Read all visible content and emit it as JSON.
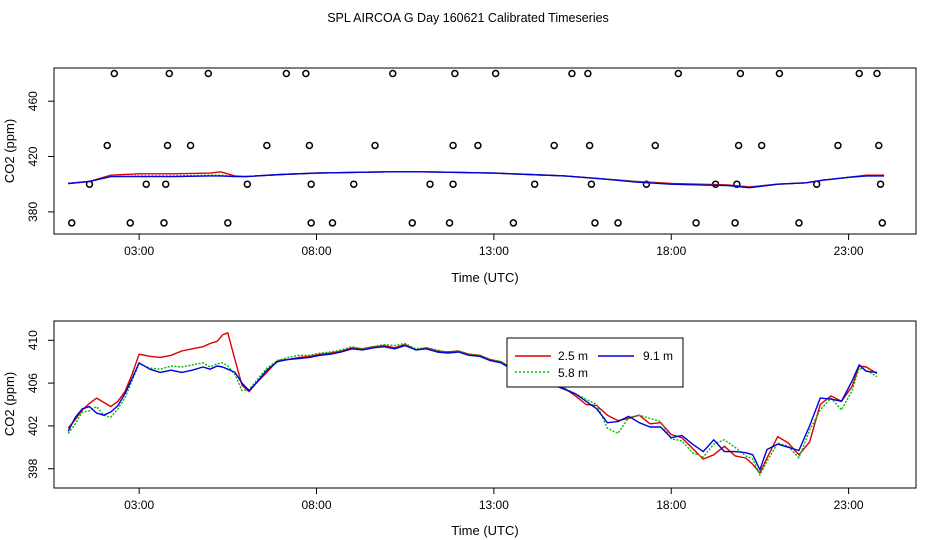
{
  "title": "SPL AIRCOA G  Day 160621  Calibrated Timeseries",
  "colors": {
    "2.5 m": "#dd0000",
    "5.8 m": "#00bb00",
    "9.1 m": "#0000dd",
    "axis": "#000000",
    "flags": "#000000"
  },
  "chart_data": [
    {
      "type": "line",
      "name": "upper-panel",
      "xlabel": "Time (UTC)",
      "ylabel": "CO2 (ppm)",
      "xlim": [
        0.6,
        24.9
      ],
      "ylim": [
        364,
        484
      ],
      "xticks": [
        3,
        8,
        13,
        18,
        23
      ],
      "xtick_labels": [
        "03:00",
        "08:00",
        "13:00",
        "18:00",
        "23:00"
      ],
      "yticks": [
        380,
        420,
        460
      ],
      "ytick_labels": [
        "380",
        "420",
        "460"
      ],
      "series": [
        {
          "name": "2.5 m",
          "x": [
            1.0,
            1.6,
            2.2,
            3.0,
            4.0,
            5.0,
            5.3,
            5.7,
            6.0,
            7.0,
            8.0,
            9.0,
            10.0,
            11.0,
            12.0,
            13.0,
            14.0,
            15.0,
            16.0,
            17.0,
            18.0,
            18.8,
            19.6,
            20.2,
            21.0,
            21.8,
            22.3,
            23.0,
            23.5,
            24.0
          ],
          "values": [
            400.5,
            402,
            406.5,
            407.5,
            407.5,
            408,
            409,
            406,
            405.5,
            407,
            408,
            408.5,
            409,
            409,
            408.5,
            408,
            407,
            406,
            404,
            402,
            400.5,
            400,
            399.5,
            398,
            400,
            401,
            403,
            405,
            406.5,
            406.5
          ]
        },
        {
          "name": "5.8 m",
          "x": [
            1.0,
            1.6,
            2.2,
            3.0,
            4.0,
            5.0,
            5.3,
            5.7,
            6.0,
            7.0,
            8.0,
            9.0,
            10.0,
            11.0,
            12.0,
            13.0,
            14.0,
            15.0,
            16.0,
            17.0,
            18.0,
            18.8,
            19.6,
            20.2,
            21.0,
            21.8,
            22.3,
            23.0,
            23.5,
            24.0
          ],
          "values": [
            400.5,
            402,
            405.5,
            406,
            406,
            406.5,
            406.5,
            405.5,
            405.5,
            407,
            408,
            408.5,
            409,
            409,
            408.5,
            408,
            407,
            406,
            404,
            402,
            400,
            399.5,
            399,
            397.5,
            400,
            401,
            403,
            405,
            406,
            406
          ]
        },
        {
          "name": "9.1 m",
          "x": [
            1.0,
            1.6,
            2.2,
            3.0,
            4.0,
            5.0,
            5.3,
            5.7,
            6.0,
            7.0,
            8.0,
            9.0,
            10.0,
            11.0,
            12.0,
            13.0,
            14.0,
            15.0,
            16.0,
            17.0,
            18.0,
            18.8,
            19.6,
            20.2,
            21.0,
            21.8,
            22.3,
            23.0,
            23.5,
            24.0
          ],
          "values": [
            400.5,
            402,
            405.5,
            405.5,
            405.5,
            406,
            406,
            405.5,
            405.5,
            407,
            408,
            408.5,
            409,
            409,
            408.5,
            408,
            407,
            406,
            404,
            401.5,
            400,
            399.5,
            399,
            397.5,
            400,
            401,
            403,
            405,
            406,
            406
          ]
        }
      ],
      "markers": {
        "name": "valve flags",
        "symbol": "open-circle",
        "x": [
          1.1,
          1.6,
          2.1,
          2.3,
          2.75,
          3.2,
          3.7,
          3.75,
          3.8,
          3.85,
          4.45,
          4.95,
          5.5,
          6.05,
          6.6,
          7.15,
          7.7,
          7.8,
          7.85,
          7.85,
          8.45,
          9.05,
          9.65,
          10.15,
          10.7,
          11.2,
          11.75,
          11.85,
          11.85,
          11.9,
          12.55,
          13.05,
          13.55,
          14.15,
          14.7,
          15.2,
          15.65,
          15.7,
          15.75,
          15.85,
          16.5,
          17.3,
          17.55,
          18.2,
          18.7,
          19.25,
          19.8,
          19.85,
          19.9,
          19.95,
          20.55,
          21.05,
          21.6,
          22.1,
          22.7,
          23.3,
          23.8,
          23.85,
          23.9,
          23.95
        ],
        "values": [
          372,
          400,
          428,
          480,
          372,
          400,
          372,
          400,
          428,
          480,
          428,
          480,
          372,
          400,
          428,
          480,
          480,
          428,
          400,
          372,
          372,
          400,
          428,
          480,
          372,
          400,
          372,
          400,
          428,
          480,
          428,
          480,
          372,
          400,
          428,
          480,
          480,
          428,
          400,
          372,
          372,
          400,
          428,
          480,
          372,
          400,
          372,
          400,
          428,
          480,
          428,
          480,
          372,
          400,
          428,
          480,
          480,
          428,
          400,
          372
        ]
      }
    },
    {
      "type": "line",
      "name": "lower-panel",
      "xlabel": "Time (UTC)",
      "ylabel": "CO2 (ppm)",
      "xlim": [
        0.6,
        24.9
      ],
      "ylim": [
        396.2,
        411.8
      ],
      "xticks": [
        3,
        8,
        13,
        18,
        23
      ],
      "xtick_labels": [
        "03:00",
        "08:00",
        "13:00",
        "18:00",
        "23:00"
      ],
      "yticks": [
        398,
        402,
        406,
        410
      ],
      "ytick_labels": [
        "398",
        "402",
        "406",
        "410"
      ],
      "legend": {
        "placement": "center-right",
        "entries": [
          "2.5 m",
          "5.8 m",
          "9.1 m"
        ]
      },
      "series": [
        {
          "name": "2.5 m",
          "x": [
            1.0,
            1.2,
            1.4,
            1.6,
            1.8,
            2.0,
            2.2,
            2.4,
            2.6,
            2.8,
            3.0,
            3.3,
            3.6,
            3.9,
            4.2,
            4.5,
            4.8,
            5.0,
            5.2,
            5.35,
            5.5,
            5.7,
            5.9,
            6.1,
            6.3,
            6.6,
            6.9,
            7.2,
            7.5,
            7.8,
            8.1,
            8.4,
            8.7,
            9.0,
            9.3,
            9.6,
            9.9,
            10.2,
            10.5,
            10.8,
            11.1,
            11.4,
            11.7,
            12.0,
            12.3,
            12.6,
            12.9,
            13.2,
            13.5,
            13.8,
            14.1,
            14.4,
            14.7,
            15.0,
            15.3,
            15.6,
            15.9,
            16.2,
            16.5,
            16.8,
            17.1,
            17.4,
            17.7,
            18.0,
            18.3,
            18.6,
            18.9,
            19.2,
            19.5,
            19.8,
            20.1,
            20.3,
            20.5,
            20.7,
            21.0,
            21.3,
            21.6,
            21.9,
            22.2,
            22.5,
            22.8,
            23.1,
            23.3,
            23.5,
            23.8
          ],
          "values": [
            401.8,
            402.6,
            403.5,
            404.1,
            404.6,
            404.2,
            403.8,
            404.3,
            405.2,
            406.8,
            408.7,
            408.5,
            408.4,
            408.6,
            409.0,
            409.2,
            409.4,
            409.7,
            409.9,
            410.5,
            410.7,
            408.2,
            405.8,
            405.2,
            406.0,
            407.0,
            408.1,
            408.2,
            408.4,
            408.5,
            408.7,
            408.8,
            409.0,
            409.3,
            409.2,
            409.4,
            409.5,
            409.3,
            409.6,
            409.1,
            409.3,
            409.0,
            408.9,
            409.0,
            408.7,
            408.6,
            408.2,
            408.0,
            407.4,
            406.9,
            406.6,
            406.0,
            405.8,
            405.5,
            404.8,
            404.0,
            403.9,
            403.0,
            402.5,
            402.7,
            403.0,
            402.2,
            402.3,
            401.2,
            400.9,
            399.9,
            398.9,
            399.3,
            400.1,
            399.2,
            399.0,
            398.4,
            397.6,
            399.0,
            401.0,
            400.4,
            399.3,
            400.5,
            404.0,
            404.8,
            404.3,
            405.7,
            407.6,
            407.5,
            406.9
          ]
        },
        {
          "name": "5.8 m",
          "x": [
            1.0,
            1.2,
            1.4,
            1.6,
            1.8,
            2.0,
            2.2,
            2.4,
            2.6,
            2.8,
            3.0,
            3.3,
            3.6,
            3.9,
            4.2,
            4.5,
            4.8,
            5.0,
            5.2,
            5.35,
            5.5,
            5.7,
            5.9,
            6.1,
            6.3,
            6.6,
            6.9,
            7.2,
            7.5,
            7.8,
            8.1,
            8.4,
            8.7,
            9.0,
            9.3,
            9.6,
            9.9,
            10.2,
            10.5,
            10.8,
            11.1,
            11.4,
            11.7,
            12.0,
            12.3,
            12.6,
            12.9,
            13.2,
            13.5,
            13.8,
            14.1,
            14.4,
            14.7,
            15.0,
            15.3,
            15.6,
            15.9,
            16.2,
            16.5,
            16.8,
            17.1,
            17.4,
            17.7,
            18.0,
            18.3,
            18.6,
            18.9,
            19.2,
            19.5,
            19.8,
            20.1,
            20.3,
            20.5,
            20.7,
            21.0,
            21.3,
            21.6,
            21.9,
            22.2,
            22.5,
            22.8,
            23.1,
            23.3,
            23.5,
            23.8
          ],
          "values": [
            401.3,
            402.2,
            403.3,
            403.4,
            403.8,
            403.0,
            402.8,
            403.6,
            404.6,
            406.2,
            407.8,
            407.4,
            407.3,
            407.6,
            407.5,
            407.7,
            407.9,
            407.5,
            407.8,
            407.9,
            407.6,
            406.8,
            405.3,
            405.4,
            406.2,
            407.4,
            408.1,
            408.4,
            408.6,
            408.6,
            408.8,
            408.9,
            409.1,
            409.4,
            409.2,
            409.4,
            409.6,
            409.5,
            409.7,
            409.2,
            409.3,
            409.1,
            408.8,
            409.0,
            408.7,
            408.6,
            408.2,
            408.0,
            407.3,
            406.8,
            406.5,
            406.0,
            405.9,
            405.5,
            405.0,
            404.5,
            404.0,
            401.8,
            401.3,
            402.8,
            403.0,
            402.7,
            402.4,
            400.8,
            400.6,
            399.5,
            399.1,
            400.3,
            400.7,
            400.0,
            399.2,
            398.9,
            397.4,
            398.7,
            400.4,
            400.1,
            399.0,
            401.6,
            403.5,
            404.6,
            403.5,
            405.3,
            407.4,
            407.2,
            406.6
          ]
        },
        {
          "name": "9.1 m",
          "x": [
            1.0,
            1.2,
            1.4,
            1.6,
            1.8,
            2.0,
            2.2,
            2.4,
            2.6,
            2.8,
            3.0,
            3.3,
            3.6,
            3.9,
            4.2,
            4.5,
            4.8,
            5.0,
            5.2,
            5.35,
            5.5,
            5.7,
            5.9,
            6.1,
            6.3,
            6.6,
            6.9,
            7.2,
            7.5,
            7.8,
            8.1,
            8.4,
            8.7,
            9.0,
            9.3,
            9.6,
            9.9,
            10.2,
            10.5,
            10.8,
            11.1,
            11.4,
            11.7,
            12.0,
            12.3,
            12.6,
            12.9,
            13.2,
            13.5,
            13.8,
            14.1,
            14.4,
            14.7,
            15.0,
            15.3,
            15.6,
            15.9,
            16.2,
            16.5,
            16.8,
            17.1,
            17.4,
            17.7,
            18.0,
            18.3,
            18.6,
            18.9,
            19.2,
            19.5,
            19.8,
            20.1,
            20.3,
            20.5,
            20.7,
            21.0,
            21.3,
            21.6,
            21.9,
            22.2,
            22.5,
            22.8,
            23.1,
            23.3,
            23.5,
            23.8
          ],
          "values": [
            401.5,
            402.8,
            403.6,
            403.8,
            403.2,
            403.0,
            403.3,
            403.9,
            405.0,
            406.4,
            407.9,
            407.3,
            407.0,
            407.2,
            407.0,
            407.2,
            407.5,
            407.3,
            407.6,
            407.5,
            407.3,
            407.0,
            406.0,
            405.3,
            406.0,
            407.2,
            408.0,
            408.2,
            408.3,
            408.4,
            408.6,
            408.7,
            408.9,
            409.2,
            409.1,
            409.3,
            409.4,
            409.2,
            409.5,
            409.1,
            409.2,
            408.9,
            408.8,
            408.9,
            408.6,
            408.5,
            408.1,
            407.9,
            407.3,
            406.8,
            406.5,
            406.0,
            405.8,
            405.4,
            405.0,
            404.3,
            403.6,
            402.3,
            402.4,
            402.9,
            402.3,
            401.9,
            401.9,
            400.9,
            401.1,
            400.3,
            399.6,
            400.7,
            399.6,
            399.6,
            399.5,
            399.3,
            397.9,
            399.8,
            400.3,
            400.0,
            399.7,
            402.0,
            404.6,
            404.5,
            404.3,
            406.2,
            407.7,
            407.1,
            407.0
          ]
        }
      ]
    }
  ]
}
